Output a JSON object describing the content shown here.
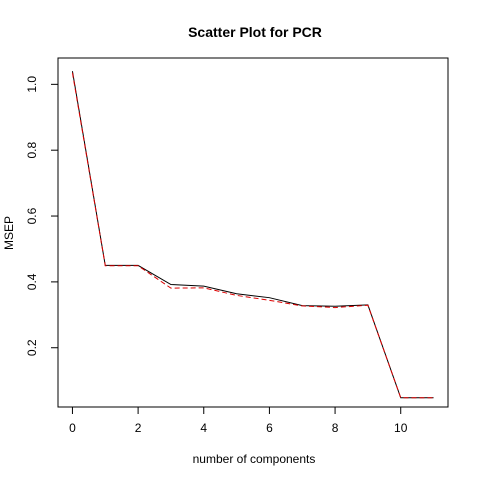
{
  "chart_data": {
    "type": "line",
    "title": "Scatter Plot for PCR",
    "xlabel": "number of components",
    "ylabel": "MSEP",
    "x": [
      0,
      1,
      2,
      3,
      4,
      5,
      6,
      7,
      8,
      9,
      10,
      11
    ],
    "xlim": [
      -0.44,
      11.44
    ],
    "ylim": [
      0.02,
      1.08
    ],
    "x_ticks": [
      0,
      2,
      4,
      6,
      8,
      10
    ],
    "y_ticks": [
      0.2,
      0.4,
      0.6,
      0.8,
      1.0
    ],
    "x_tick_labels": [
      "0",
      "2",
      "4",
      "6",
      "8",
      "10"
    ],
    "y_tick_labels": [
      "0.2",
      "0.4",
      "0.6",
      "0.8",
      "1.0"
    ],
    "grid": false,
    "series": [
      {
        "values": [
          1.04,
          0.45,
          0.45,
          0.392,
          0.387,
          0.364,
          0.352,
          0.328,
          0.326,
          0.33,
          0.048,
          0.048
        ],
        "color": "#000000",
        "dash": "solid"
      },
      {
        "values": [
          1.035,
          0.449,
          0.449,
          0.381,
          0.382,
          0.359,
          0.344,
          0.327,
          0.322,
          0.329,
          0.048,
          0.048
        ],
        "color": "#dd0000",
        "dash": "dashed"
      }
    ]
  }
}
